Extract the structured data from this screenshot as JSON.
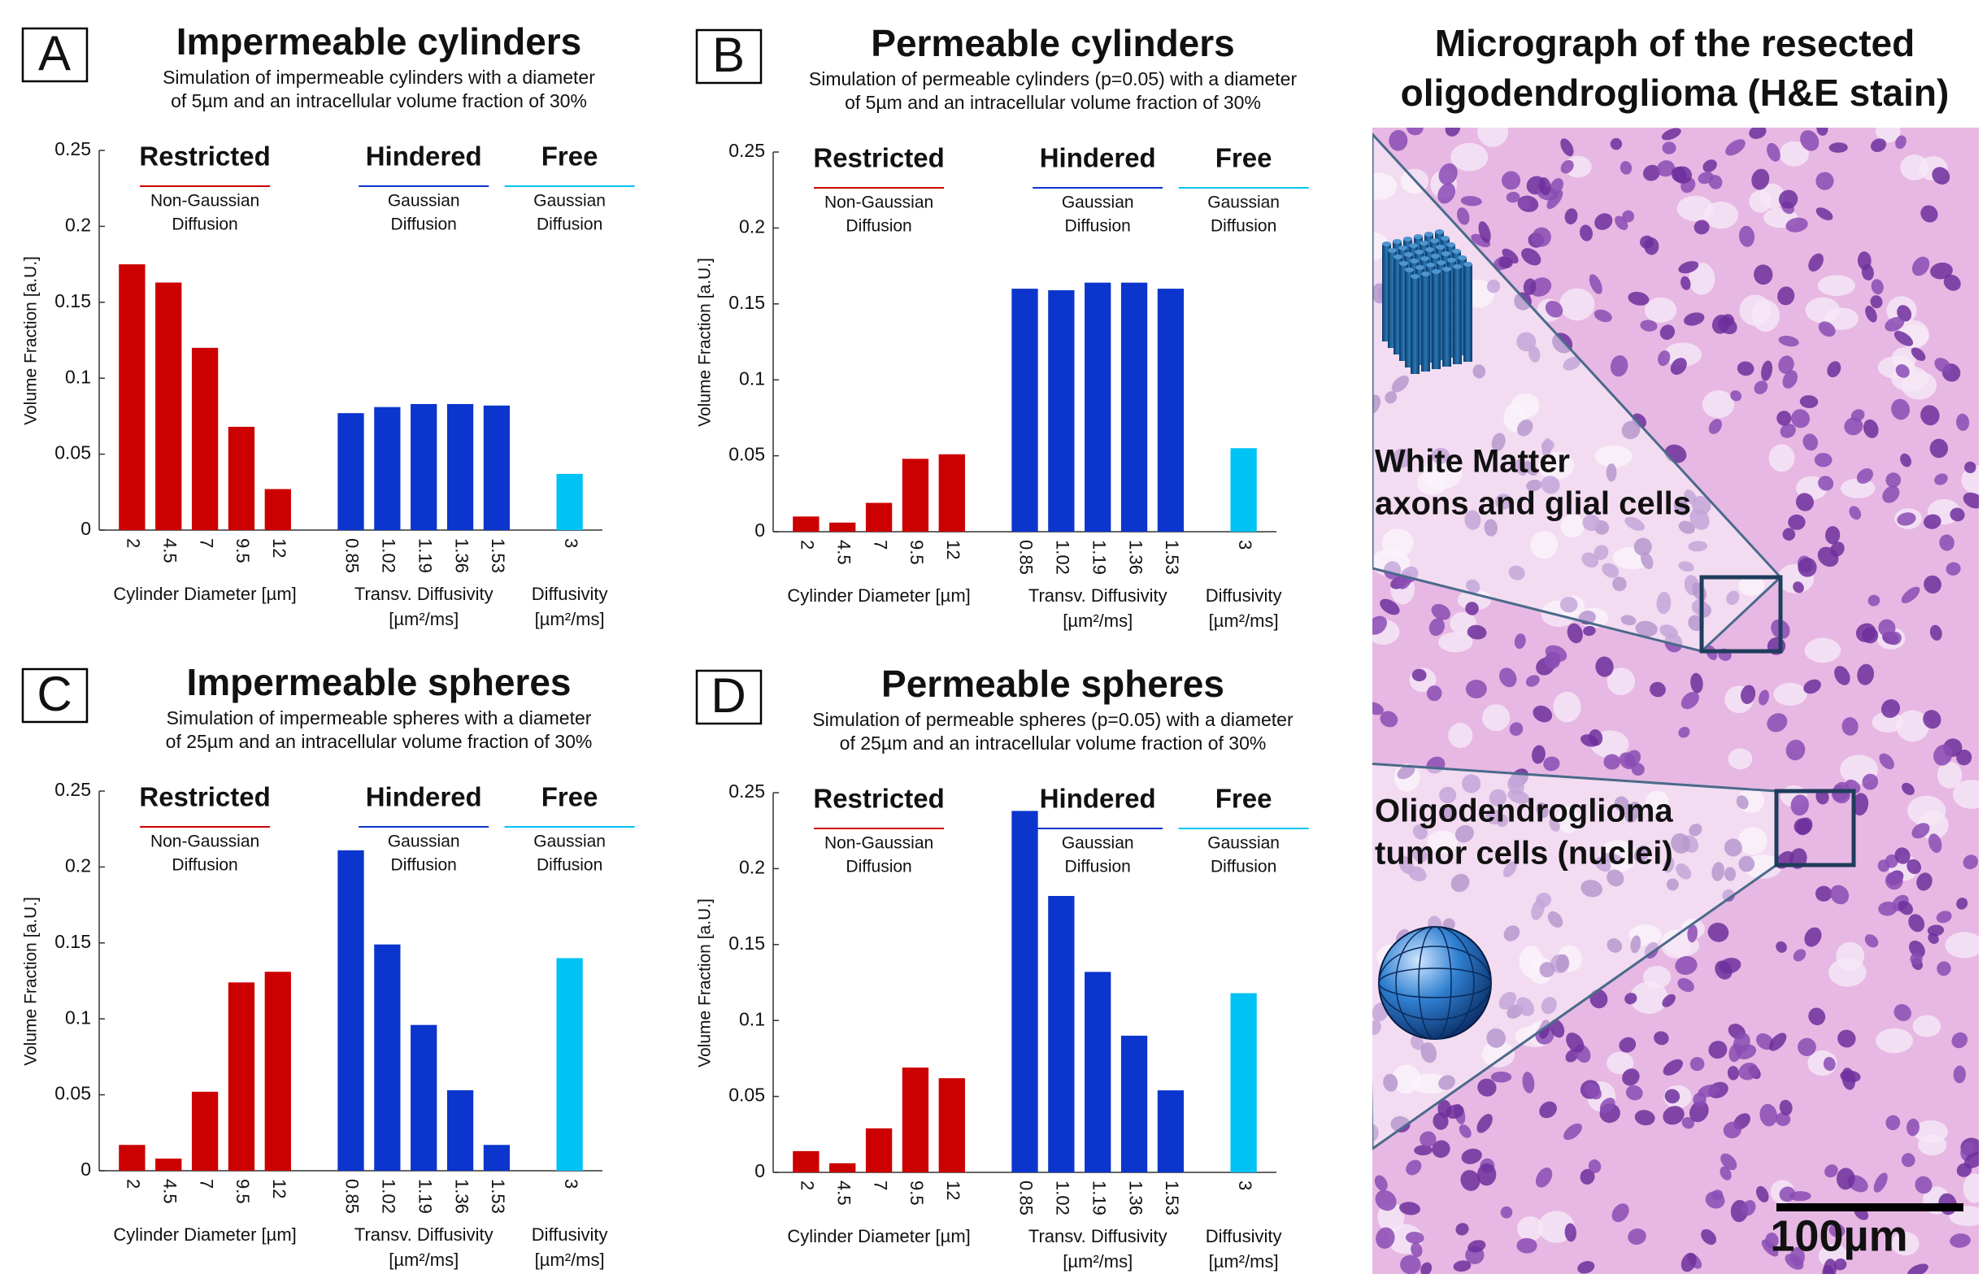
{
  "chart_data": [
    {
      "type": "bar",
      "panel": "A",
      "title": "Impermeable cylinders",
      "subtitle": [
        "Simulation of impermeable cylinders with a diameter",
        "of 5µm and an intracellular volume fraction of 30%"
      ],
      "ylabel": "Volume Fraction [a.U.]",
      "ylim": [
        0,
        0.25
      ],
      "yticks": [
        0,
        0.05,
        0.1,
        0.15,
        0.2,
        0.25
      ],
      "series": [
        {
          "name": "Restricted",
          "description": [
            "Non-Gaussian",
            "Diffusion"
          ],
          "xlabel": [
            "Cylinder Diameter [µm]"
          ],
          "color": "#cc0000",
          "categories": [
            "2",
            "4.5",
            "7",
            "9.5",
            "12"
          ],
          "values": [
            0.175,
            0.163,
            0.12,
            0.068,
            0.027
          ]
        },
        {
          "name": "Hindered",
          "description": [
            "Gaussian",
            "Diffusion"
          ],
          "xlabel": [
            "Transv. Diffusivity",
            "[µm²/ms]"
          ],
          "color": "#0b35cc",
          "categories": [
            "0.85",
            "1.02",
            "1.19",
            "1.36",
            "1.53"
          ],
          "values": [
            0.077,
            0.081,
            0.083,
            0.083,
            0.082
          ]
        },
        {
          "name": "Free",
          "description": [
            "Gaussian",
            "Diffusion"
          ],
          "xlabel": [
            "Diffusivity",
            "[µm²/ms]"
          ],
          "color": "#00c3f5",
          "categories": [
            "3"
          ],
          "values": [
            0.037
          ]
        }
      ]
    },
    {
      "type": "bar",
      "panel": "B",
      "title": "Permeable cylinders",
      "subtitle": [
        "Simulation of permeable cylinders (p=0.05) with a diameter",
        "of 5µm and an intracellular volume fraction of 30%"
      ],
      "ylabel": "Volume Fraction [a.U.]",
      "ylim": [
        0,
        0.25
      ],
      "yticks": [
        0,
        0.05,
        0.1,
        0.15,
        0.2,
        0.25
      ],
      "series": [
        {
          "name": "Restricted",
          "description": [
            "Non-Gaussian",
            "Diffusion"
          ],
          "xlabel": [
            "Cylinder Diameter [µm]"
          ],
          "color": "#cc0000",
          "categories": [
            "2",
            "4.5",
            "7",
            "9.5",
            "12"
          ],
          "values": [
            0.01,
            0.006,
            0.019,
            0.048,
            0.051
          ]
        },
        {
          "name": "Hindered",
          "description": [
            "Gaussian",
            "Diffusion"
          ],
          "xlabel": [
            "Transv. Diffusivity",
            "[µm²/ms]"
          ],
          "color": "#0b35cc",
          "categories": [
            "0.85",
            "1.02",
            "1.19",
            "1.36",
            "1.53"
          ],
          "values": [
            0.16,
            0.159,
            0.164,
            0.164,
            0.16
          ]
        },
        {
          "name": "Free",
          "description": [
            "Gaussian",
            "Diffusion"
          ],
          "xlabel": [
            "Diffusivity",
            "[µm²/ms]"
          ],
          "color": "#00c3f5",
          "categories": [
            "3"
          ],
          "values": [
            0.055
          ]
        }
      ]
    },
    {
      "type": "bar",
      "panel": "C",
      "title": "Impermeable spheres",
      "subtitle": [
        "Simulation of impermeable spheres with a diameter",
        "of 25µm and an intracellular volume fraction of 30%"
      ],
      "ylabel": "Volume Fraction [a.U.]",
      "ylim": [
        0,
        0.25
      ],
      "yticks": [
        0,
        0.05,
        0.1,
        0.15,
        0.2,
        0.25
      ],
      "series": [
        {
          "name": "Restricted",
          "description": [
            "Non-Gaussian",
            "Diffusion"
          ],
          "xlabel": [
            "Cylinder Diameter [µm]"
          ],
          "color": "#cc0000",
          "categories": [
            "2",
            "4.5",
            "7",
            "9.5",
            "12"
          ],
          "values": [
            0.017,
            0.008,
            0.052,
            0.124,
            0.131
          ]
        },
        {
          "name": "Hindered",
          "description": [
            "Gaussian",
            "Diffusion"
          ],
          "xlabel": [
            "Transv. Diffusivity",
            "[µm²/ms]"
          ],
          "color": "#0b35cc",
          "categories": [
            "0.85",
            "1.02",
            "1.19",
            "1.36",
            "1.53"
          ],
          "values": [
            0.211,
            0.149,
            0.096,
            0.053,
            0.017
          ]
        },
        {
          "name": "Free",
          "description": [
            "Gaussian",
            "Diffusion"
          ],
          "xlabel": [
            "Diffusivity",
            "[µm²/ms]"
          ],
          "color": "#00c3f5",
          "categories": [
            "3"
          ],
          "values": [
            0.14
          ]
        }
      ]
    },
    {
      "type": "bar",
      "panel": "D",
      "title": "Permeable spheres",
      "subtitle": [
        "Simulation of permeable spheres (p=0.05) with a diameter",
        "of 25µm and an intracellular volume fraction of 30%"
      ],
      "ylabel": "Volume Fraction [a.U.]",
      "ylim": [
        0,
        0.25
      ],
      "yticks": [
        0,
        0.05,
        0.1,
        0.15,
        0.2,
        0.25
      ],
      "series": [
        {
          "name": "Restricted",
          "description": [
            "Non-Gaussian",
            "Diffusion"
          ],
          "xlabel": [
            "Cylinder Diameter [µm]"
          ],
          "color": "#cc0000",
          "categories": [
            "2",
            "4.5",
            "7",
            "9.5",
            "12"
          ],
          "values": [
            0.014,
            0.006,
            0.029,
            0.069,
            0.062
          ]
        },
        {
          "name": "Hindered",
          "description": [
            "Gaussian",
            "Diffusion"
          ],
          "xlabel": [
            "Transv. Diffusivity",
            "[µm²/ms]"
          ],
          "color": "#0b35cc",
          "categories": [
            "0.85",
            "1.02",
            "1.19",
            "1.36",
            "1.53"
          ],
          "values": [
            0.238,
            0.182,
            0.132,
            0.09,
            0.054
          ]
        },
        {
          "name": "Free",
          "description": [
            "Gaussian",
            "Diffusion"
          ],
          "xlabel": [
            "Diffusivity",
            "[µm²/ms]"
          ],
          "color": "#00c3f5",
          "categories": [
            "3"
          ],
          "values": [
            0.118
          ]
        }
      ]
    }
  ],
  "micrograph": {
    "title": [
      "Micrograph of the resected",
      "oligodendroglioma (H&E stain)"
    ],
    "annotations": [
      {
        "lines": [
          "White Matter",
          "axons and glial cells"
        ]
      },
      {
        "lines": [
          "Oligodendroglioma",
          "tumor cells (nuclei)"
        ]
      }
    ],
    "scale_bar": "100µm"
  }
}
